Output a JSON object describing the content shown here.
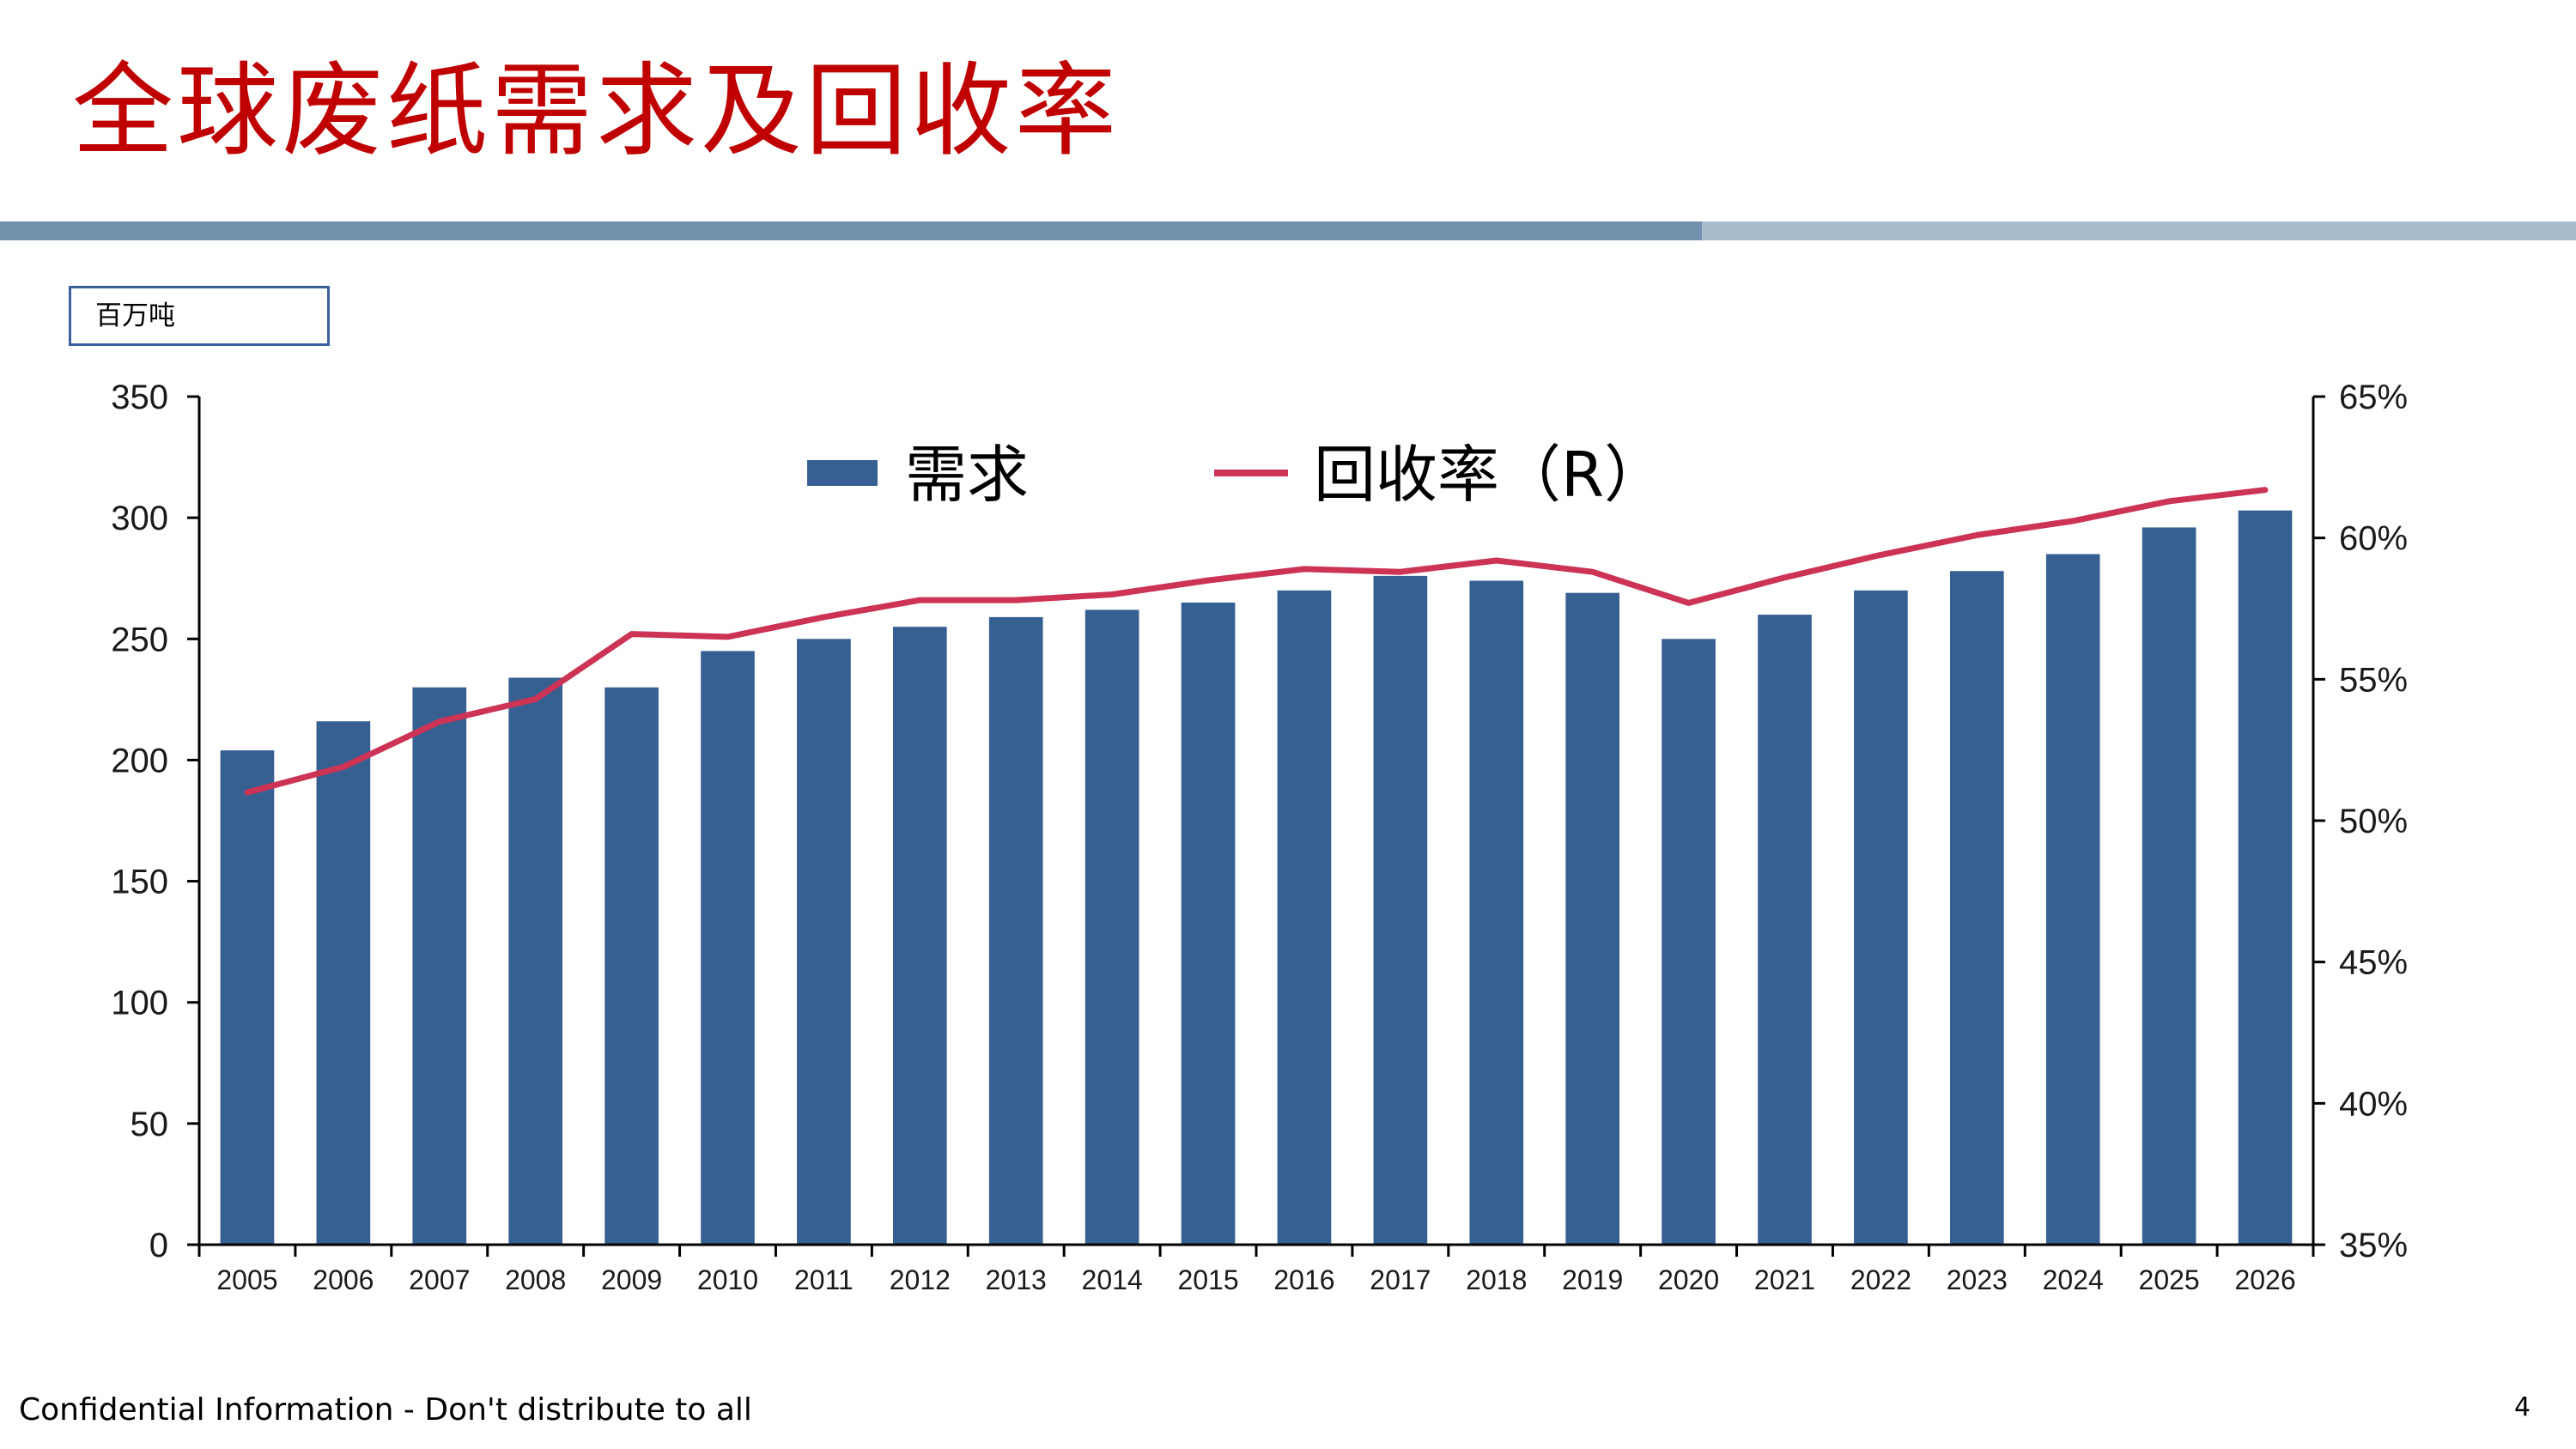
{
  "slide": {
    "title": "全球废纸需求及回收率",
    "unit_label": "百万吨",
    "footer": "Confidential Information - Don't distribute to all",
    "page_number": "4"
  },
  "colors": {
    "title": "#c00000",
    "bar": "#376092",
    "line": "#cc3355",
    "bar_dark": "#7390ad",
    "bar_light": "#a8bccd"
  },
  "chart_data": {
    "type": "bar",
    "categories": [
      "2005",
      "2006",
      "2007",
      "2008",
      "2009",
      "2010",
      "2011",
      "2012",
      "2013",
      "2014",
      "2015",
      "2016",
      "2017",
      "2018",
      "2019",
      "2020",
      "2021",
      "2022",
      "2023",
      "2024",
      "2025",
      "2026"
    ],
    "series": [
      {
        "name": "需求",
        "type": "bar",
        "axis": "left",
        "values": [
          204,
          216,
          230,
          234,
          230,
          245,
          250,
          255,
          259,
          262,
          265,
          270,
          276,
          274,
          269,
          250,
          260,
          270,
          278,
          285,
          296,
          303
        ]
      },
      {
        "name": "回收率（R）",
        "type": "line",
        "axis": "right",
        "values": [
          51.0,
          51.9,
          53.5,
          54.3,
          56.6,
          56.5,
          57.2,
          57.8,
          57.8,
          58.0,
          58.5,
          58.9,
          58.8,
          59.2,
          58.8,
          57.7,
          58.6,
          59.4,
          60.1,
          60.6,
          61.3,
          61.7
        ]
      }
    ],
    "y_left": {
      "min": 0,
      "max": 350,
      "ticks": [
        "0",
        "50",
        "100",
        "150",
        "200",
        "250",
        "300",
        "350"
      ]
    },
    "y_right": {
      "min": 35,
      "max": 65,
      "ticks": [
        "35%",
        "40%",
        "45%",
        "50%",
        "55%",
        "60%",
        "65%"
      ]
    },
    "legend": {
      "position": "top-center",
      "bar_label": "需求",
      "line_label": "回收率（R）"
    },
    "grid": false
  }
}
